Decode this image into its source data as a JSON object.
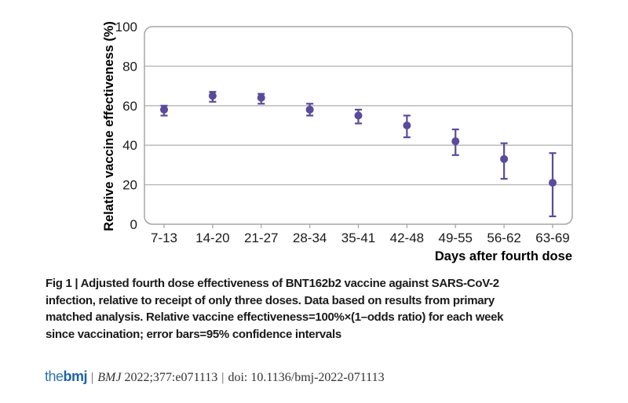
{
  "colors": {
    "marker_purple": "#5b4a9b",
    "grid": "#b5b5b5",
    "frame": "#a6a6a6",
    "logo_blue": "#1f62a8",
    "text": "#1a1a1a"
  },
  "chart_data": {
    "type": "scatter",
    "categories": [
      "7-13",
      "14-20",
      "21-27",
      "28-34",
      "35-41",
      "42-48",
      "49-55",
      "56-62",
      "63-69"
    ],
    "series": [
      {
        "name": "Relative vaccine effectiveness",
        "values": [
          58,
          65,
          64,
          58,
          55,
          50,
          42,
          33,
          21
        ],
        "ci_low": [
          55,
          62,
          61,
          55,
          51,
          44,
          35,
          23,
          4
        ],
        "ci_high": [
          60,
          67,
          66,
          61,
          58,
          55,
          48,
          41,
          36
        ]
      }
    ],
    "title": "",
    "xlabel": "Days after fourth dose",
    "ylabel": "Relative vaccine effectiveness (%)",
    "ylim": [
      0,
      100
    ],
    "yticks": [
      0,
      20,
      40,
      60,
      80,
      100
    ],
    "grid": true,
    "legend": "none",
    "marker_color": "#5b4a9b",
    "error_bars": "95% confidence intervals"
  },
  "caption": {
    "lines": [
      "Fig 1 | Adjusted fourth dose effectiveness of BNT162b2 vaccine against SARS-CoV-2",
      "infection, relative to receipt of only three doses. Data based on results from primary",
      "matched analysis. Relative vaccine effectiveness=100%×(1–odds ratio) for each week",
      "since vaccination; error bars=95% confidence intervals"
    ]
  },
  "footer": {
    "logo_the": "the",
    "logo_bmj": "bmj",
    "separator": "|",
    "journal": "BMJ",
    "citation": "2022;377:e071113",
    "separator2": "|",
    "doi": "doi: 10.1136/bmj-2022-071113"
  }
}
